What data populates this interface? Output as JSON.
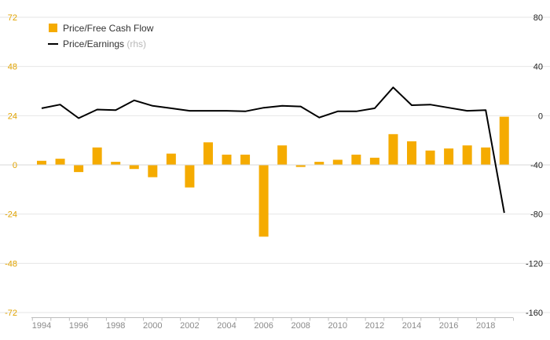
{
  "chart_data": {
    "type": "bar+line",
    "title": "",
    "xlabel": "",
    "ylabel": "",
    "categories": [
      "1994",
      "1995",
      "1996",
      "1997",
      "1998",
      "1999",
      "2000",
      "2001",
      "2002",
      "2003",
      "2004",
      "2005",
      "2006",
      "2007",
      "2008",
      "2009",
      "2010",
      "2011",
      "2012",
      "2013",
      "2014",
      "2015",
      "2016",
      "2017",
      "2018",
      "2019"
    ],
    "x_tick_labels": [
      "1994",
      "1996",
      "1998",
      "2000",
      "2002",
      "2004",
      "2006",
      "2008",
      "2010",
      "2012",
      "2014",
      "2016",
      "2018"
    ],
    "series": [
      {
        "name": "Price/Free Cash Flow",
        "type": "bar",
        "axis": "left",
        "values": [
          2,
          3,
          -3.5,
          8.5,
          1.5,
          -2,
          -6,
          5.5,
          -11,
          11,
          5,
          5,
          -35,
          9.5,
          -1,
          1.5,
          2.5,
          5,
          3.5,
          15,
          11.5,
          7,
          8,
          9.5,
          8.5,
          23.5
        ]
      },
      {
        "name": "Price/Earnings",
        "note": "(rhs)",
        "type": "line",
        "axis": "right",
        "values": [
          6,
          9,
          -2,
          5,
          4.5,
          12.5,
          8,
          6,
          4,
          4,
          4,
          3.5,
          6.5,
          8,
          7.5,
          -1.5,
          3.5,
          3.5,
          6,
          23,
          8.5,
          9,
          6.5,
          4,
          4.5,
          -79
        ]
      }
    ],
    "y_left": {
      "ylim": [
        -72,
        72
      ],
      "ticks": [
        "72",
        "48",
        "24",
        "0",
        "-24",
        "-48",
        "-72"
      ],
      "tick_values": [
        72,
        48,
        24,
        0,
        -24,
        -48,
        -72
      ]
    },
    "y_right": {
      "ylim": [
        -160,
        80
      ],
      "ticks": [
        "80",
        "40",
        "0",
        "-40",
        "-80",
        "-120",
        "-160"
      ],
      "tick_values": [
        80,
        40,
        0,
        -40,
        -80,
        -120,
        -160
      ]
    },
    "legend": {
      "placement": "top-left"
    },
    "grid": true,
    "colors": {
      "bars": "#f5ab00",
      "line": "#000000",
      "grid": "#e6e6e6",
      "left_ticks": "#e0a300"
    }
  }
}
